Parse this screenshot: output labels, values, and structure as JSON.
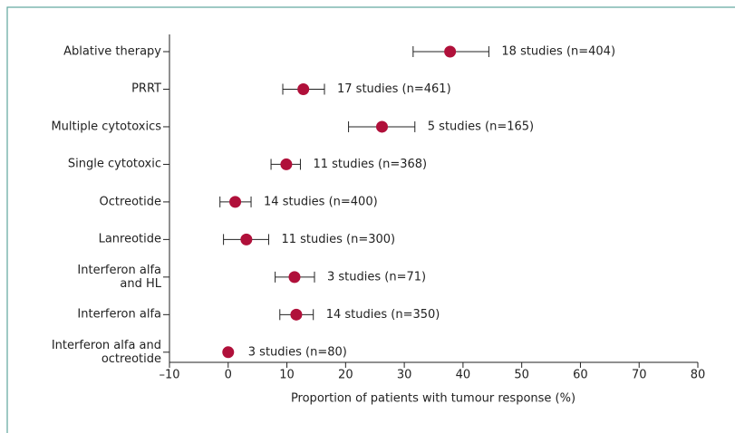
{
  "chart_data": {
    "type": "forest",
    "xlabel": "Proportion of patients with tumour response (%)",
    "categories": [
      "Ablative therapy",
      "PRRT",
      "Multiple cytotoxics",
      "Single cytotoxic",
      "Octreotide",
      "Lanreotide",
      "Interferon alfa\nand HL",
      "Interferon alfa",
      "Interferon alfa and\noctreotide"
    ],
    "values": [
      37.8,
      12.8,
      26.2,
      9.9,
      1.2,
      3.1,
      11.3,
      11.6,
      0
    ],
    "lower": [
      31.5,
      9.3,
      20.5,
      7.3,
      -1.4,
      -0.8,
      8.0,
      8.8,
      null
    ],
    "upper": [
      44.4,
      16.4,
      31.8,
      12.3,
      3.9,
      6.9,
      14.7,
      14.5,
      null
    ],
    "annotations": [
      "18 studies (n=404)",
      "17 studies (n=461)",
      "5 studies (n=165)",
      "11 studies (n=368)",
      "14 studies (n=400)",
      "11 studies (n=300)",
      "3 studies (n=71)",
      "14 studies (n=350)",
      "3 studies (n=80)"
    ],
    "color": "#b0103a",
    "xlim": [
      -10,
      80
    ],
    "xticks": [
      {
        "value": -10,
        "label": "–10"
      },
      0,
      10,
      20,
      30,
      40,
      50,
      60,
      70,
      80
    ]
  }
}
